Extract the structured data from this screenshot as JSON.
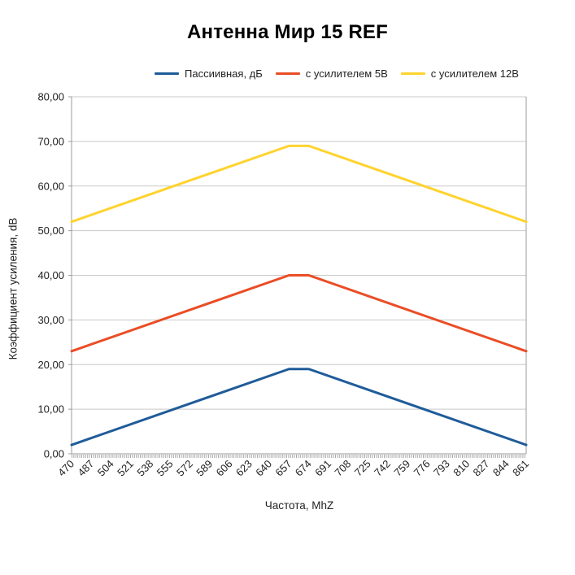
{
  "page": {
    "background": "#ffffff"
  },
  "chart_data": {
    "type": "line",
    "title": "Антенна Мир 15 REF",
    "xlabel": "Частота, MhZ",
    "ylabel": "Коэффициент усиления, dB",
    "legend_position": "top",
    "grid": "horizontal",
    "ylim": [
      0,
      80
    ],
    "categories": [
      "470",
      "487",
      "504",
      "521",
      "538",
      "555",
      "572",
      "589",
      "606",
      "623",
      "640",
      "657",
      "674",
      "691",
      "708",
      "725",
      "742",
      "759",
      "776",
      "793",
      "810",
      "827",
      "844",
      "861"
    ],
    "y_ticks": [
      {
        "value": 0,
        "label": "0,00"
      },
      {
        "value": 10,
        "label": "10,00"
      },
      {
        "value": 20,
        "label": "20,00"
      },
      {
        "value": 30,
        "label": "30,00"
      },
      {
        "value": 40,
        "label": "40,00"
      },
      {
        "value": 50,
        "label": "50,00"
      },
      {
        "value": 60,
        "label": "60,00"
      },
      {
        "value": 70,
        "label": "70,00"
      },
      {
        "value": 80,
        "label": "80,00"
      }
    ],
    "series": [
      {
        "name": "Пассиивная, дБ",
        "color": "#1f5c99",
        "points": [
          {
            "x": 470,
            "y": 2
          },
          {
            "x": 657,
            "y": 19
          },
          {
            "x": 674,
            "y": 19
          },
          {
            "x": 861,
            "y": 2
          }
        ]
      },
      {
        "name": "с усилителем 5В",
        "color": "#ea4d26",
        "points": [
          {
            "x": 470,
            "y": 23
          },
          {
            "x": 657,
            "y": 40
          },
          {
            "x": 674,
            "y": 40
          },
          {
            "x": 861,
            "y": 23
          }
        ]
      },
      {
        "name": "с усилителем 12В",
        "color": "#ffd32e",
        "points": [
          {
            "x": 470,
            "y": 52
          },
          {
            "x": 657,
            "y": 69
          },
          {
            "x": 674,
            "y": 69
          },
          {
            "x": 861,
            "y": 52
          }
        ]
      }
    ],
    "colors": {
      "gridline": "#c9c9c9",
      "axis": "#9b9b9b",
      "minor_ticks": "#a8a8a8",
      "text": "#222222",
      "title": "#000000"
    }
  }
}
